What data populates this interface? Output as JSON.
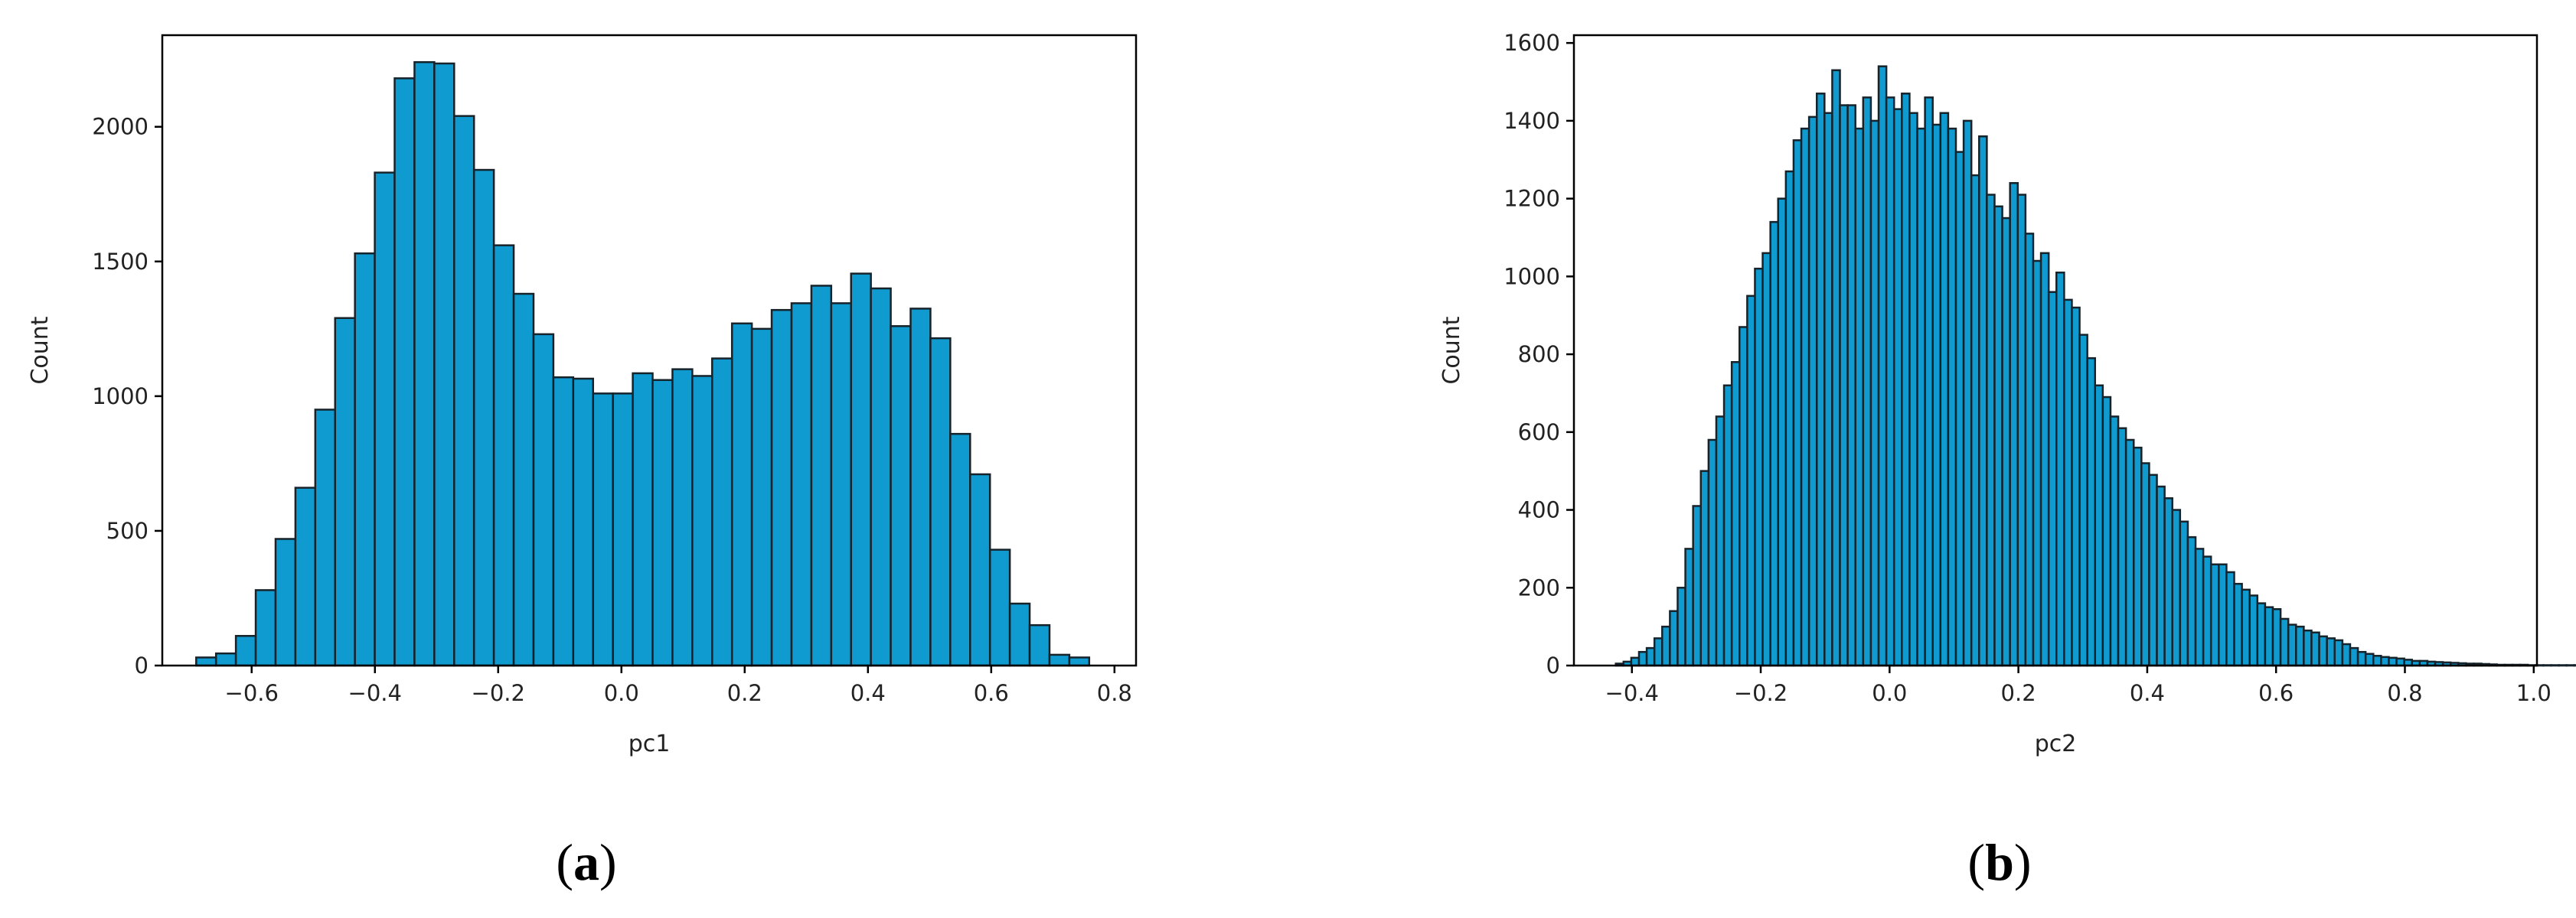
{
  "style": {
    "bar_fill": "#0f9ad0",
    "bar_edge": "#17232b"
  },
  "panels": [
    {
      "caption_letter": "a"
    },
    {
      "caption_letter": "b"
    }
  ],
  "chart_data": [
    {
      "type": "bar",
      "subtype": "histogram",
      "xlabel": "pc1",
      "ylabel": "Count",
      "xlim": [
        -0.745,
        0.835
      ],
      "ylim": [
        0,
        2340
      ],
      "xticks": [
        -0.6,
        -0.4,
        -0.2,
        0.0,
        0.2,
        0.4,
        0.6,
        0.8
      ],
      "xtick_labels": [
        "−0.6",
        "−0.4",
        "−0.2",
        "0.0",
        "0.2",
        "0.4",
        "0.6",
        "0.8"
      ],
      "yticks": [
        0,
        500,
        1000,
        1500,
        2000
      ],
      "ytick_labels": [
        "0",
        "500",
        "1000",
        "1500",
        "2000"
      ],
      "bin_start": -0.69,
      "bin_width": 0.0322,
      "values": [
        30,
        45,
        110,
        280,
        470,
        660,
        950,
        1290,
        1530,
        1830,
        2180,
        2240,
        2235,
        2040,
        1840,
        1560,
        1380,
        1230,
        1070,
        1065,
        1010,
        1010,
        1085,
        1060,
        1100,
        1075,
        1140,
        1270,
        1250,
        1320,
        1345,
        1410,
        1345,
        1455,
        1400,
        1260,
        1325,
        1215,
        860,
        710,
        430,
        230,
        150,
        40,
        30
      ]
    },
    {
      "type": "bar",
      "subtype": "histogram",
      "xlabel": "pc2",
      "ylabel": "Count",
      "xlim": [
        -0.49,
        1.005
      ],
      "ylim": [
        0,
        1620
      ],
      "xticks": [
        -0.4,
        -0.2,
        0.0,
        0.2,
        0.4,
        0.6,
        0.8,
        1.0
      ],
      "xtick_labels": [
        "−0.4",
        "−0.2",
        "0.0",
        "0.2",
        "0.4",
        "0.6",
        "0.8",
        "1.0"
      ],
      "yticks": [
        0,
        200,
        400,
        600,
        800,
        1000,
        1200,
        1400,
        1600
      ],
      "ytick_labels": [
        "0",
        "200",
        "400",
        "600",
        "800",
        "1000",
        "1200",
        "1400",
        "1600"
      ],
      "bin_start": -0.425,
      "bin_width": 0.012,
      "values": [
        5,
        10,
        20,
        35,
        45,
        70,
        100,
        140,
        200,
        300,
        410,
        500,
        580,
        640,
        720,
        780,
        870,
        950,
        1020,
        1060,
        1140,
        1200,
        1270,
        1350,
        1380,
        1410,
        1470,
        1420,
        1530,
        1440,
        1440,
        1380,
        1460,
        1400,
        1540,
        1460,
        1430,
        1470,
        1420,
        1380,
        1460,
        1390,
        1420,
        1380,
        1320,
        1400,
        1260,
        1360,
        1210,
        1180,
        1150,
        1240,
        1210,
        1110,
        1040,
        1060,
        960,
        1010,
        940,
        920,
        850,
        790,
        720,
        690,
        640,
        610,
        580,
        560,
        520,
        490,
        460,
        430,
        400,
        370,
        330,
        300,
        280,
        260,
        260,
        240,
        210,
        195,
        180,
        160,
        150,
        145,
        120,
        105,
        100,
        90,
        85,
        75,
        70,
        65,
        55,
        45,
        35,
        30,
        25,
        22,
        20,
        18,
        15,
        12,
        12,
        10,
        9,
        8,
        7,
        6,
        5,
        5,
        4,
        3,
        2,
        2,
        2,
        2,
        1,
        1,
        1,
        1,
        1,
        1,
        1,
        1,
        1,
        1,
        1,
        1,
        1,
        1
      ]
    }
  ]
}
